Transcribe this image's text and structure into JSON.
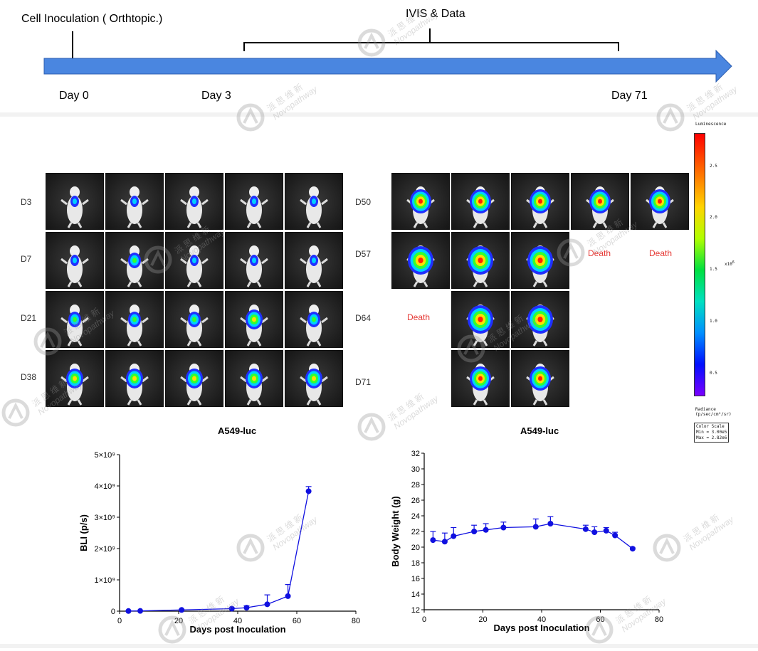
{
  "timeline": {
    "inoculation_label": "Cell Inoculation ( Orthtopic.)",
    "ivis_label": "IVIS & Data",
    "day0": "Day 0",
    "day3": "Day 3",
    "day71": "Day 71",
    "arrow_color": "#4a86e0"
  },
  "left_panel": {
    "title": "A549-luc",
    "rows": [
      "D3",
      "D7",
      "D21",
      "D38"
    ],
    "columns": 5
  },
  "right_panel": {
    "title": "A549-luc",
    "rows": [
      "D50",
      "D57",
      "D64",
      "D71"
    ],
    "death_label": "Death"
  },
  "colorbar": {
    "title": "Luminescence",
    "ticks": [
      "2.5",
      "2.0",
      "1.5",
      "1.0",
      "0.5"
    ],
    "exponent_label": "x10",
    "exponent": "6",
    "radiance_line1": "Radiance",
    "radiance_line2": "(p/sec/cm²/sr)",
    "scale_line1": "Color Scale",
    "scale_line2": "Min = 3.00e5",
    "scale_line3": "Max = 2.82e6"
  },
  "watermark": {
    "chinese": "派 思 维 新",
    "english": "Novopathway"
  },
  "chart_data": [
    {
      "type": "line",
      "xlabel": "Days post Inoculation",
      "ylabel": "BLI (p/s)",
      "xlim": [
        0,
        80
      ],
      "ylim": [
        0,
        5000000000
      ],
      "xticks": [
        "0",
        "20",
        "40",
        "60",
        "80"
      ],
      "yticks": [
        "0",
        "1×10⁹",
        "2×10⁹",
        "3×10⁹",
        "4×10⁹",
        "5×10⁹"
      ],
      "color": "#1010e0",
      "series": [
        {
          "x": [
            3,
            7,
            21,
            38,
            43,
            50,
            57,
            64
          ],
          "y": [
            5000000,
            8000000,
            40000000,
            80000000,
            110000000,
            220000000,
            480000000,
            3830000000
          ],
          "error": [
            3000000,
            5000000,
            15000000,
            30000000,
            60000000,
            300000000,
            370000000,
            150000000
          ]
        }
      ]
    },
    {
      "type": "line",
      "xlabel": "Days post Inoculation",
      "ylabel": "Body Weight (g)",
      "xlim": [
        0,
        80
      ],
      "ylim": [
        12,
        32
      ],
      "xticks": [
        "0",
        "20",
        "40",
        "60",
        "80"
      ],
      "yticks": [
        "12",
        "14",
        "16",
        "18",
        "20",
        "22",
        "24",
        "26",
        "28",
        "30",
        "32"
      ],
      "color": "#1010e0",
      "series": [
        {
          "x": [
            3,
            7,
            10,
            17,
            21,
            27,
            38,
            43,
            55,
            58,
            62,
            65,
            71
          ],
          "y": [
            20.9,
            20.7,
            21.4,
            22.0,
            22.2,
            22.5,
            22.6,
            23.0,
            22.3,
            21.9,
            22.1,
            21.5,
            19.8
          ],
          "error": [
            1.1,
            1.1,
            1.1,
            0.8,
            0.8,
            0.7,
            1.0,
            0.9,
            0.5,
            0.7,
            0.4,
            0.4,
            0.1
          ]
        }
      ]
    }
  ]
}
